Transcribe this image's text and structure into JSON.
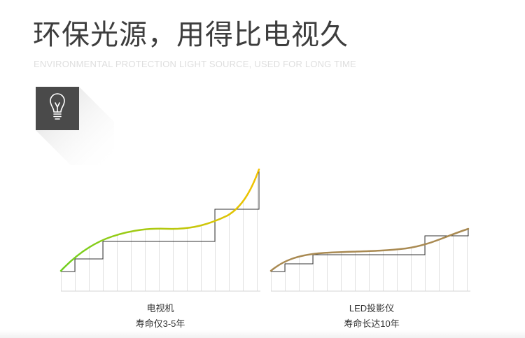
{
  "header": {
    "title": "环保光源，用得比电视久",
    "subtitle": "ENVIRONMENTAL PROTECTION LIGHT SOURCE, USED FOR LONG TIME"
  },
  "icon": {
    "name": "lightbulb-icon",
    "background": "#4a4a4a"
  },
  "comparison": [
    {
      "label": "电视机",
      "lifespan": "寿命仅3-5年",
      "curve_colors": [
        "#6fcf1f",
        "#f2c200"
      ]
    },
    {
      "label": "LED投影仪",
      "lifespan": "寿命长达10年",
      "curve_color": "#a98a52"
    }
  ],
  "colors": {
    "step_line": "#333333",
    "grid_line": "#e2e2e2",
    "baseline": "#d6d6d6"
  }
}
